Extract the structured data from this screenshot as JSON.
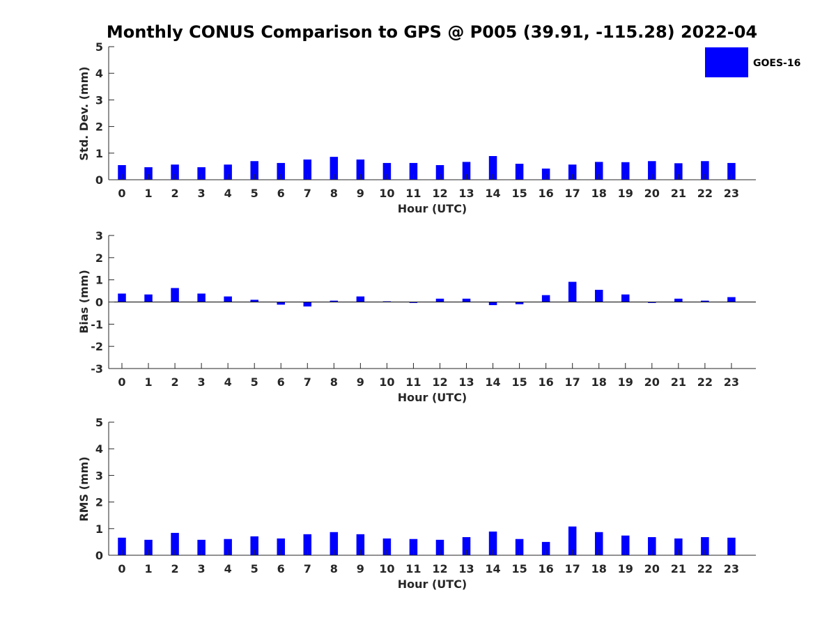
{
  "title": "Monthly CONUS Comparison to GPS @ P005 (39.91, -115.28) 2022-04",
  "legend": {
    "label": "GOES-16",
    "color": "#0000ff"
  },
  "colors": {
    "bar": "#0000ff",
    "axis": "#262626",
    "zero_line": "#000000"
  },
  "chart_data": [
    {
      "type": "bar",
      "ylabel": "Std. Dev. (mm)",
      "xlabel": "Hour (UTC)",
      "ylim": [
        0,
        5
      ],
      "yticks": [
        0,
        1,
        2,
        3,
        4,
        5
      ],
      "grid": false,
      "categories": [
        "0",
        "1",
        "2",
        "3",
        "4",
        "5",
        "6",
        "7",
        "8",
        "9",
        "10",
        "11",
        "12",
        "13",
        "14",
        "15",
        "16",
        "17",
        "18",
        "19",
        "20",
        "21",
        "22",
        "23"
      ],
      "series": [
        {
          "name": "GOES-16",
          "values": [
            0.55,
            0.47,
            0.57,
            0.47,
            0.57,
            0.7,
            0.63,
            0.76,
            0.86,
            0.76,
            0.63,
            0.63,
            0.55,
            0.67,
            0.89,
            0.6,
            0.42,
            0.57,
            0.67,
            0.66,
            0.7,
            0.62,
            0.7,
            0.63
          ]
        }
      ]
    },
    {
      "type": "bar",
      "ylabel": "Bias (mm)",
      "xlabel": "Hour (UTC)",
      "ylim": [
        -3,
        3
      ],
      "yticks": [
        -3,
        -2,
        -1,
        0,
        1,
        2,
        3
      ],
      "grid": false,
      "categories": [
        "0",
        "1",
        "2",
        "3",
        "4",
        "5",
        "6",
        "7",
        "8",
        "9",
        "10",
        "11",
        "12",
        "13",
        "14",
        "15",
        "16",
        "17",
        "18",
        "19",
        "20",
        "21",
        "22",
        "23"
      ],
      "series": [
        {
          "name": "GOES-16",
          "values": [
            0.38,
            0.34,
            0.63,
            0.38,
            0.25,
            0.1,
            -0.12,
            -0.2,
            0.06,
            0.25,
            0.03,
            -0.04,
            0.15,
            0.15,
            -0.14,
            -0.1,
            0.31,
            0.91,
            0.55,
            0.34,
            -0.04,
            0.15,
            0.06,
            0.22
          ]
        }
      ]
    },
    {
      "type": "bar",
      "ylabel": "RMS (mm)",
      "xlabel": "Hour (UTC)",
      "ylim": [
        0,
        5
      ],
      "yticks": [
        0,
        1,
        2,
        3,
        4,
        5
      ],
      "grid": false,
      "categories": [
        "0",
        "1",
        "2",
        "3",
        "4",
        "5",
        "6",
        "7",
        "8",
        "9",
        "10",
        "11",
        "12",
        "13",
        "14",
        "15",
        "16",
        "17",
        "18",
        "19",
        "20",
        "21",
        "22",
        "23"
      ],
      "series": [
        {
          "name": "GOES-16",
          "values": [
            0.66,
            0.58,
            0.84,
            0.58,
            0.61,
            0.71,
            0.63,
            0.79,
            0.87,
            0.79,
            0.63,
            0.61,
            0.58,
            0.68,
            0.89,
            0.61,
            0.5,
            1.08,
            0.87,
            0.74,
            0.68,
            0.63,
            0.68,
            0.66
          ]
        }
      ]
    }
  ]
}
